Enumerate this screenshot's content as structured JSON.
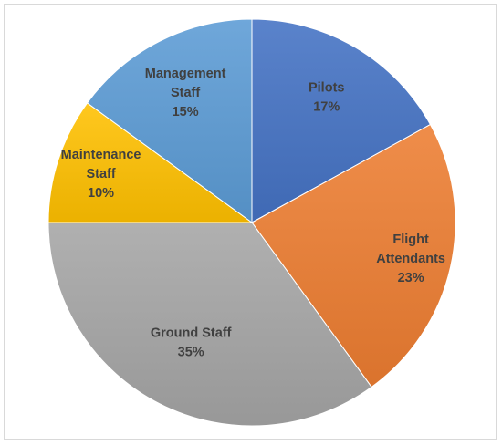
{
  "chart_data": {
    "type": "pie",
    "title": "",
    "slices": [
      {
        "label_lines": [
          "Pilots"
        ],
        "percent_text": "17%",
        "value": 17,
        "color": "#4472c4"
      },
      {
        "label_lines": [
          "Flight",
          "Attendants"
        ],
        "percent_text": "23%",
        "value": 23,
        "color": "#ed7d31"
      },
      {
        "label_lines": [
          "Ground Staff"
        ],
        "percent_text": "35%",
        "value": 35,
        "color": "#a5a5a5"
      },
      {
        "label_lines": [
          "Maintenance",
          "Staff"
        ],
        "percent_text": "10%",
        "value": 10,
        "color": "#ffc000"
      },
      {
        "label_lines": [
          "Management",
          "Staff"
        ],
        "percent_text": "15%",
        "value": 15,
        "color": "#5b9bd5"
      }
    ],
    "start_angle": "12 o'clock",
    "direction": "clockwise",
    "legend": "none",
    "label_color": "#404040"
  }
}
